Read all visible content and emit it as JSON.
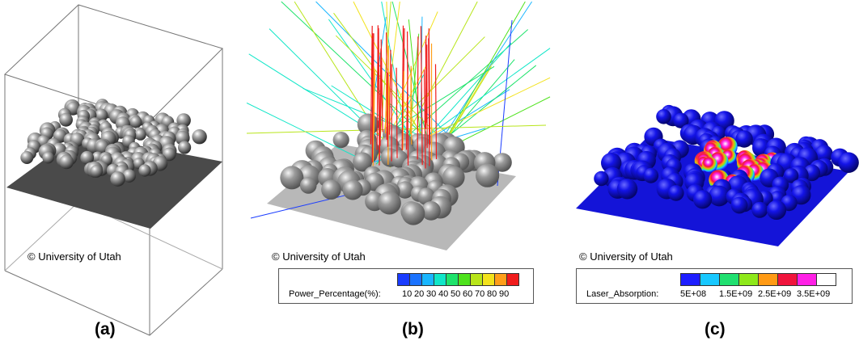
{
  "panels": [
    {
      "id": "a",
      "label": "(a)",
      "credit": "© University of Utah"
    },
    {
      "id": "b",
      "label": "(b)",
      "credit": "© University of Utah",
      "legend": {
        "title": "Power_Percentage(%):",
        "ticks": [
          "10",
          "20",
          "30",
          "40",
          "50",
          "60",
          "70",
          "80",
          "90"
        ],
        "colors": [
          "#1a3cff",
          "#1b73ff",
          "#19b6ff",
          "#10e6c8",
          "#1ee36b",
          "#4ee21c",
          "#b8e51a",
          "#f2e21c",
          "#ff9e1a",
          "#f01c1c"
        ]
      }
    },
    {
      "id": "c",
      "label": "(c)",
      "credit": "© University of Utah",
      "legend": {
        "title": "Laser_Absorption:",
        "ticks": [
          "5E+08",
          "1.5E+09",
          "2.5E+09",
          "3.5E+09"
        ],
        "colors": [
          "#1e1eff",
          "#18c8ff",
          "#20e070",
          "#8ee81a",
          "#ff9a14",
          "#f0143c",
          "#ff20e6",
          "#ffffff"
        ]
      }
    }
  ],
  "colors": {
    "particle": "#8a8a8a",
    "particle_blue": "#1010e0",
    "plate_dark": "#4a4a4a",
    "plate_light": "#b8b8b8",
    "plate_blue": "#1414d8"
  }
}
